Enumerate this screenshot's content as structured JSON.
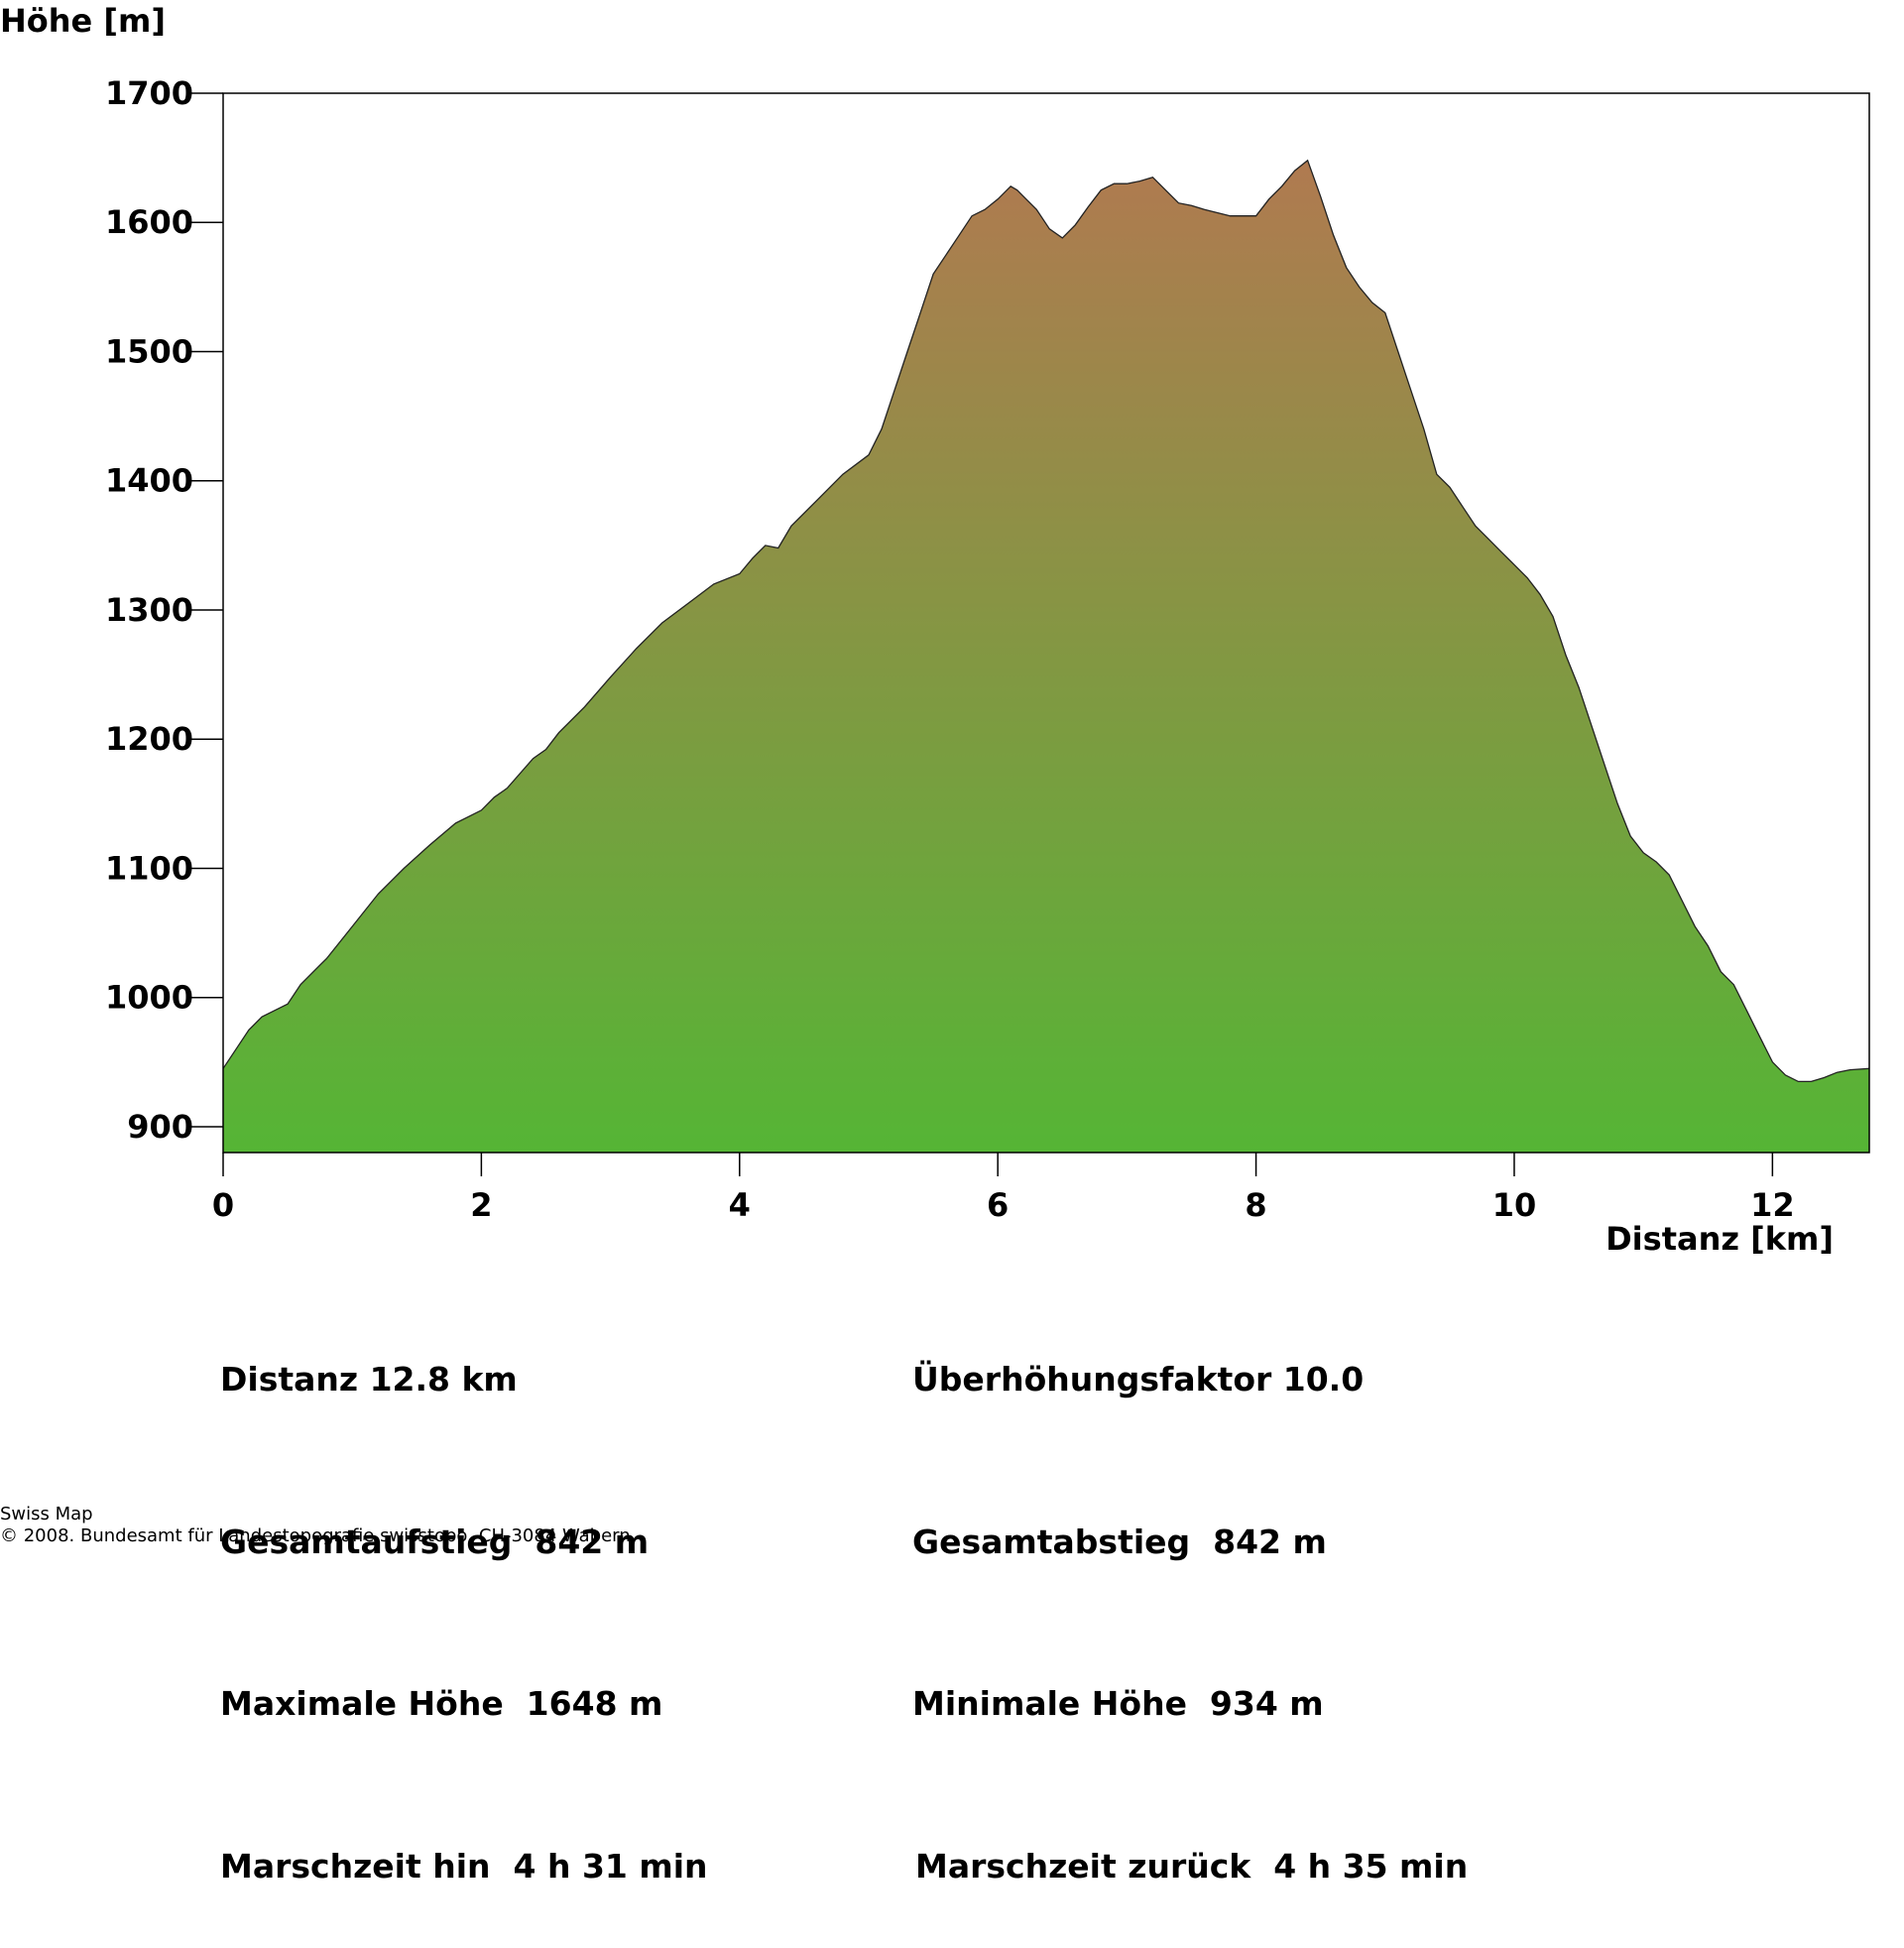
{
  "chart_data": {
    "type": "area",
    "title": "",
    "ylabel": "Höhe [m]",
    "xlabel": "Distanz [km]",
    "xlim": [
      0,
      12.75
    ],
    "ylim": [
      880,
      1700
    ],
    "xticks": [
      0,
      2,
      4,
      6,
      8,
      10,
      12
    ],
    "yticks": [
      900,
      1000,
      1100,
      1200,
      1300,
      1400,
      1500,
      1600,
      1700
    ],
    "grid": false,
    "legend": "none",
    "fill_colors": {
      "top": "#b07a50",
      "bottom": "#55b535"
    },
    "series": [
      {
        "x": [
          0,
          0.1,
          0.2,
          0.3,
          0.5,
          0.6,
          0.75,
          0.8,
          1.0,
          1.2,
          1.4,
          1.6,
          1.8,
          1.9,
          2.0,
          2.1,
          2.2,
          2.4,
          2.5,
          2.6,
          2.8,
          3.0,
          3.2,
          3.4,
          3.6,
          3.8,
          4.0,
          4.1,
          4.2,
          4.3,
          4.4,
          4.6,
          4.8,
          5.0,
          5.1,
          5.2,
          5.3,
          5.4,
          5.5,
          5.6,
          5.7,
          5.8,
          5.9,
          6.0,
          6.1,
          6.15,
          6.2,
          6.3,
          6.4,
          6.5,
          6.6,
          6.7,
          6.8,
          6.9,
          7.0,
          7.1,
          7.2,
          7.3,
          7.4,
          7.5,
          7.6,
          7.8,
          8.0,
          8.1,
          8.2,
          8.3,
          8.4,
          8.5,
          8.6,
          8.7,
          8.8,
          8.9,
          9.0,
          9.1,
          9.2,
          9.3,
          9.4,
          9.5,
          9.6,
          9.7,
          9.8,
          9.9,
          10.0,
          10.1,
          10.2,
          10.3,
          10.4,
          10.5,
          10.6,
          10.7,
          10.8,
          10.9,
          11.0,
          11.1,
          11.2,
          11.3,
          11.4,
          11.5,
          11.6,
          11.7,
          11.8,
          11.9,
          12.0,
          12.1,
          12.2,
          12.3,
          12.4,
          12.5,
          12.6,
          12.75
        ],
        "y": [
          945,
          960,
          975,
          985,
          995,
          1010,
          1025,
          1030,
          1055,
          1080,
          1100,
          1118,
          1135,
          1140,
          1145,
          1155,
          1162,
          1185,
          1192,
          1205,
          1225,
          1248,
          1270,
          1290,
          1305,
          1320,
          1328,
          1340,
          1350,
          1348,
          1365,
          1385,
          1405,
          1420,
          1440,
          1470,
          1500,
          1530,
          1560,
          1575,
          1590,
          1605,
          1610,
          1618,
          1628,
          1625,
          1620,
          1610,
          1595,
          1588,
          1598,
          1612,
          1625,
          1630,
          1630,
          1632,
          1635,
          1625,
          1615,
          1613,
          1610,
          1605,
          1605,
          1618,
          1628,
          1640,
          1648,
          1620,
          1590,
          1565,
          1550,
          1538,
          1530,
          1500,
          1470,
          1440,
          1405,
          1395,
          1380,
          1365,
          1355,
          1345,
          1335,
          1325,
          1312,
          1295,
          1265,
          1240,
          1210,
          1180,
          1150,
          1125,
          1112,
          1105,
          1095,
          1075,
          1055,
          1040,
          1020,
          1010,
          990,
          970,
          950,
          940,
          935,
          935,
          938,
          942,
          944,
          945
        ]
      }
    ]
  },
  "stats": {
    "distance": "Distanz 12.8 km",
    "ascent": "Gesamtaufstieg  842 m",
    "max_height": "Maximale Höhe  1648 m",
    "time_out": "Marschzeit hin  4 h 31 min",
    "exaggeration": "Überhöhungsfaktor 10.0",
    "descent": "Gesamtabstieg  842 m",
    "min_height": "Minimale Höhe  934 m",
    "time_back": "Marschzeit zurück  4 h 35 min"
  },
  "footer": {
    "line1": "Swiss Map",
    "line2": "© 2008. Bundesamt für Landestopografie swisstopo, CH-3084 Wabern"
  }
}
